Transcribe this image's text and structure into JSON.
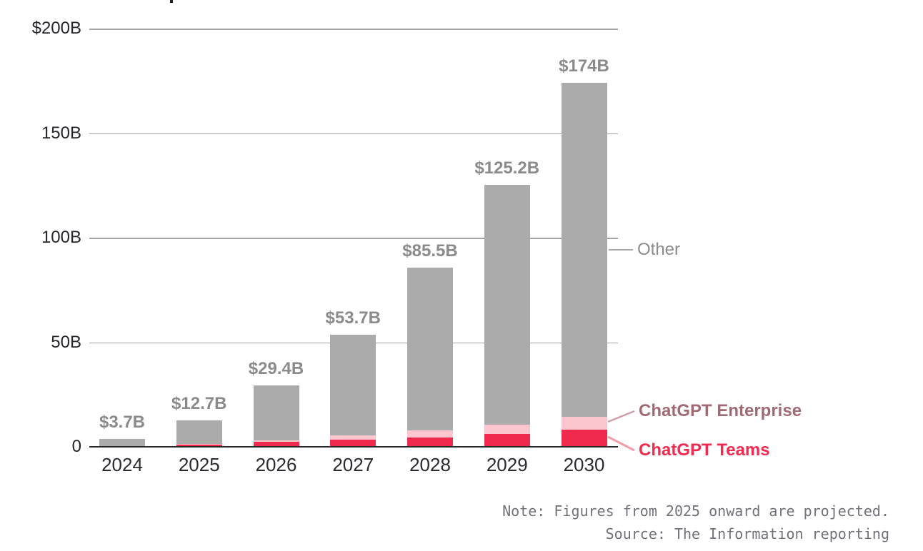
{
  "chart_data": {
    "type": "bar",
    "stacked": true,
    "title": "",
    "categories": [
      "2024",
      "2025",
      "2026",
      "2027",
      "2028",
      "2029",
      "2030"
    ],
    "series": [
      {
        "name": "ChatGPT Teams",
        "color": "#f0294e",
        "values": [
          0,
          1.0,
          2.3,
          3.4,
          4.5,
          6.0,
          8.3
        ]
      },
      {
        "name": "ChatGPT Enterprise",
        "color": "#fcc6cf",
        "values": [
          0,
          0.4,
          0.8,
          1.9,
          3.3,
          4.7,
          5.9
        ]
      },
      {
        "name": "Other",
        "color": "#ababab",
        "values": [
          3.7,
          11.3,
          26.3,
          48.4,
          77.7,
          114.5,
          159.8
        ]
      }
    ],
    "totals": [
      3.7,
      12.7,
      29.4,
      53.7,
      85.5,
      125.2,
      174
    ],
    "total_labels": [
      "$3.7B",
      "$12.7B",
      "$29.4B",
      "$53.7B",
      "$85.5B",
      "$125.2B",
      "$174B"
    ],
    "y_axis": {
      "unit": "billions USD",
      "ylim": [
        0,
        200
      ],
      "ticks": [
        {
          "value": 200,
          "label": "$200B"
        },
        {
          "value": 150,
          "label": "150B"
        },
        {
          "value": 100,
          "label": "100B"
        },
        {
          "value": 50,
          "label": "50B"
        },
        {
          "value": 0,
          "label": "0"
        }
      ]
    },
    "grid": true,
    "legend_position": "right-annotations",
    "legend": [
      "Other",
      "ChatGPT Enterprise",
      "ChatGPT Teams"
    ]
  },
  "notes": {
    "line1": "Note: Figures from 2025 onward are projected.",
    "line2": "Source: The Information reporting"
  },
  "colors": {
    "bar_other": "#ababab",
    "bar_enterprise": "#fcc6cf",
    "bar_teams": "#f0294e",
    "total_label_text": "#8b8b8b",
    "axis_tick_text": "#26262c",
    "year_label_text": "#2a2a30",
    "annotation_other_text": "#8c8c8c",
    "annotation_enterprise_text": "#a16b74",
    "annotation_teams_text": "#f4294e",
    "leader_other": "#a9a9a9",
    "leader_enterprise": "#cf9ea7",
    "leader_teams": "#f59cab",
    "gridline": "#a3a3a3",
    "baseline": "#27272a",
    "note_text": "#71717a"
  }
}
